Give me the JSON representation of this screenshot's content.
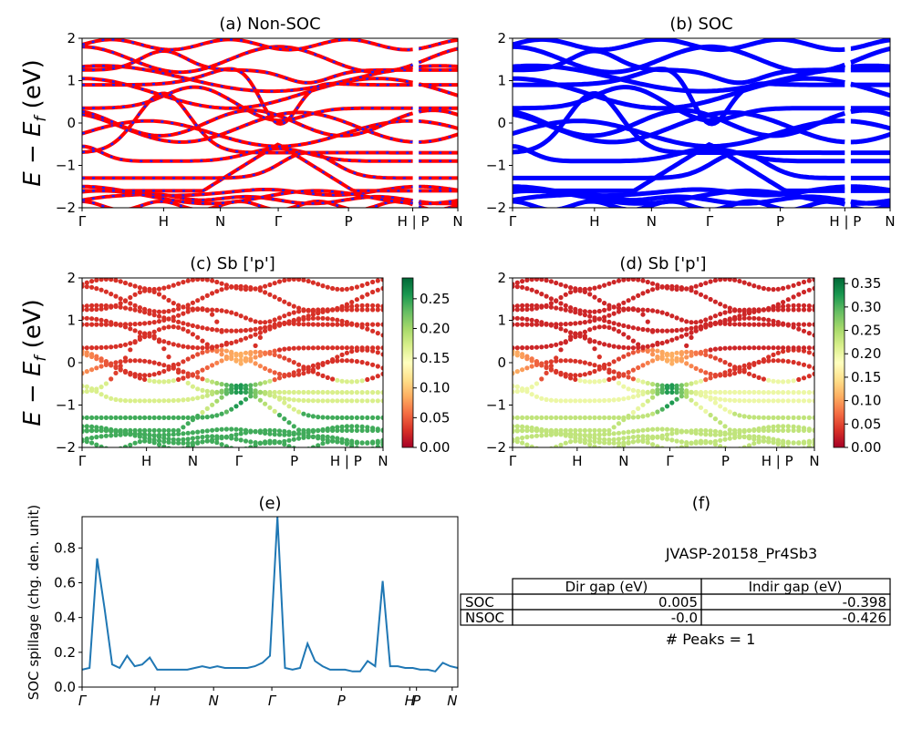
{
  "ylabel_main": "E − E",
  "ylabel_sub": "f",
  "ylabel_unit": " (eV)",
  "y_ticks": [
    "2",
    "1",
    "0",
    "−1",
    "−2"
  ],
  "panel_a": {
    "title": "(a) Non-SOC"
  },
  "panel_b": {
    "title": "(b) SOC"
  },
  "panel_c": {
    "title": "(c)  Sb ['p']",
    "cbar_ticks": [
      "0.25",
      "0.20",
      "0.15",
      "0.10",
      "0.05",
      "0.00"
    ]
  },
  "panel_d": {
    "title": "(d) Sb ['p']",
    "cbar_ticks": [
      "0.35",
      "0.30",
      "0.25",
      "0.20",
      "0.15",
      "0.10",
      "0.05",
      "0.00"
    ]
  },
  "kpath_labels": [
    "Γ",
    "H",
    "N",
    "Γ",
    "P",
    "H | P",
    "N"
  ],
  "panel_e": {
    "title": "(e)",
    "ylabel": "SOC spillage (chg. den. unit)",
    "y_ticks": [
      "0.8",
      "0.6",
      "0.4",
      "0.2",
      "0.0"
    ],
    "x_ticks": [
      "Γ",
      "H",
      "N",
      "Γ",
      "P",
      "H",
      "P",
      "N"
    ]
  },
  "panel_f": {
    "title": "(f)",
    "material": "JVASP-20158_Pr4Sb3",
    "table": {
      "headers": [
        "Dir gap (eV)",
        "Indir gap (eV)"
      ],
      "rows": [
        {
          "label": "SOC",
          "dir": "0.005",
          "indir": "-0.398"
        },
        {
          "label": "NSOC",
          "dir": "-0.0",
          "indir": "-0.426"
        }
      ]
    },
    "peaks": "# Peaks = 1"
  },
  "colors": {
    "nonsoc_red": "#ff0000",
    "nonsoc_blue": "#1f1fff",
    "soc_blue": "#0000ff",
    "spillage_line": "#1f77b4"
  },
  "chart_data": [
    {
      "type": "line",
      "title": "(a) Non-SOC",
      "ylabel": "E − E_f (eV)",
      "ylim": [
        -2,
        2
      ],
      "x_ticks": [
        "Γ",
        "H",
        "N",
        "Γ",
        "P",
        "H | P",
        "N"
      ]
    },
    {
      "type": "line",
      "title": "(b) SOC",
      "ylim": [
        -2,
        2
      ],
      "x_ticks": [
        "Γ",
        "H",
        "N",
        "Γ",
        "P",
        "H | P",
        "N"
      ]
    },
    {
      "type": "scatter",
      "title": "(c)  Sb ['p']",
      "ylabel": "E − E_f (eV)",
      "ylim": [
        -2,
        2
      ],
      "colorbar_range": [
        0.0,
        0.28
      ]
    },
    {
      "type": "scatter",
      "title": "(d) Sb ['p']",
      "ylim": [
        -2,
        2
      ],
      "colorbar_range": [
        0.0,
        0.36
      ]
    },
    {
      "type": "line",
      "title": "(e)",
      "ylabel": "SOC spillage (chg. den. unit)",
      "ylim": [
        0,
        0.98
      ],
      "x": [
        0,
        2,
        4,
        6,
        8,
        10,
        12,
        14,
        16,
        18,
        20,
        22,
        24,
        26,
        28,
        30,
        32,
        34,
        36,
        38,
        40,
        42,
        44,
        46,
        48,
        50,
        52,
        54,
        56,
        58,
        60,
        62,
        64,
        66,
        68,
        70,
        72,
        74,
        76,
        78,
        80,
        82,
        84,
        86,
        88,
        90,
        92,
        94,
        96,
        98,
        100
      ],
      "series": [
        {
          "values": [
            0.1,
            0.11,
            0.74,
            0.45,
            0.13,
            0.11,
            0.18,
            0.12,
            0.13,
            0.17,
            0.1,
            0.1,
            0.1,
            0.1,
            0.1,
            0.11,
            0.12,
            0.11,
            0.12,
            0.11,
            0.11,
            0.11,
            0.11,
            0.12,
            0.14,
            0.18,
            0.98,
            0.11,
            0.1,
            0.11,
            0.25,
            0.15,
            0.12,
            0.1,
            0.1,
            0.1,
            0.09,
            0.09,
            0.15,
            0.12,
            0.61,
            0.12,
            0.12,
            0.11,
            0.11,
            0.1,
            0.1,
            0.09,
            0.14,
            0.12,
            0.11
          ]
        }
      ]
    }
  ]
}
